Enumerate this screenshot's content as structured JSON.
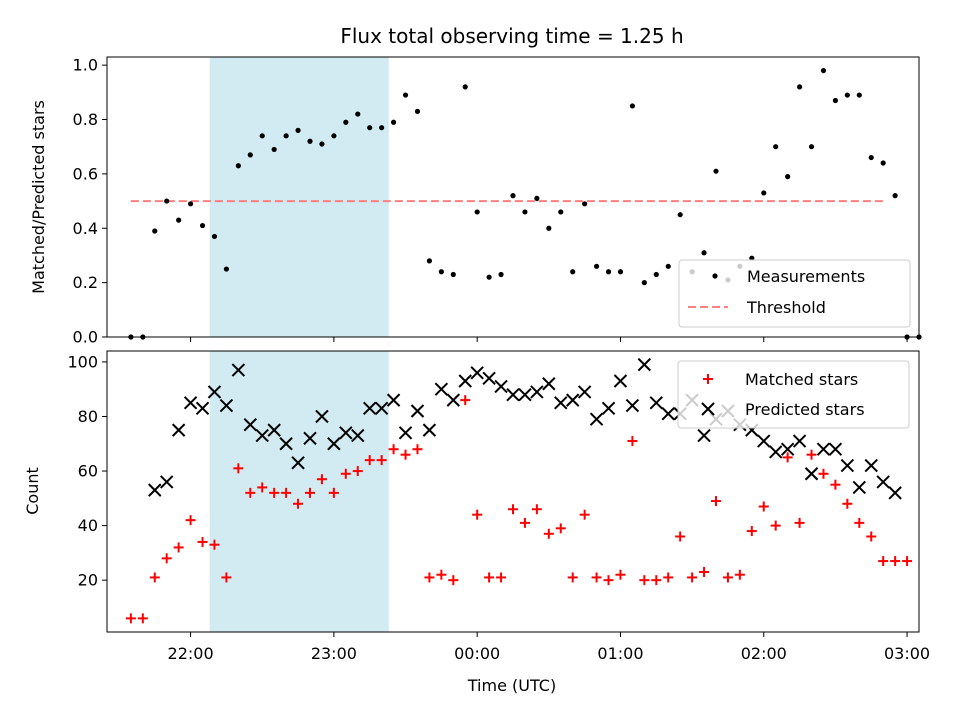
{
  "chart_data": [
    {
      "type": "scatter",
      "title": "Flux total observing time = 1.25 h",
      "ylabel": "Matched/Predicted stars",
      "xlabel": "",
      "ylim": [
        0,
        1.03
      ],
      "xlim": [
        "21:25",
        "03:05"
      ],
      "yticks": [
        "0.0",
        "0.2",
        "0.4",
        "0.6",
        "0.8",
        "1.0"
      ],
      "shaded_region": [
        "22:08",
        "23:23"
      ],
      "shade_color": "#add8e6",
      "legend_position": "lower-right",
      "legend": {
        "measurements": "Measurements",
        "threshold": "Threshold"
      },
      "threshold": {
        "value": 0.5,
        "x_range": [
          "21:35",
          "02:50"
        ],
        "color": "#ff7f7f"
      },
      "measurements": {
        "name": "Measurements",
        "color": "#000000",
        "points": [
          [
            "21:35",
            0.0
          ],
          [
            "21:40",
            0.0
          ],
          [
            "21:45",
            0.39
          ],
          [
            "21:50",
            0.5
          ],
          [
            "21:55",
            0.43
          ],
          [
            "22:00",
            0.49
          ],
          [
            "22:05",
            0.41
          ],
          [
            "22:10",
            0.37
          ],
          [
            "22:15",
            0.25
          ],
          [
            "22:20",
            0.63
          ],
          [
            "22:25",
            0.67
          ],
          [
            "22:30",
            0.74
          ],
          [
            "22:35",
            0.69
          ],
          [
            "22:40",
            0.74
          ],
          [
            "22:45",
            0.76
          ],
          [
            "22:50",
            0.72
          ],
          [
            "22:55",
            0.71
          ],
          [
            "23:00",
            0.74
          ],
          [
            "23:05",
            0.79
          ],
          [
            "23:10",
            0.82
          ],
          [
            "23:15",
            0.77
          ],
          [
            "23:20",
            0.77
          ],
          [
            "23:25",
            0.79
          ],
          [
            "23:30",
            0.89
          ],
          [
            "23:35",
            0.83
          ],
          [
            "23:40",
            0.28
          ],
          [
            "23:45",
            0.24
          ],
          [
            "23:50",
            0.23
          ],
          [
            "23:55",
            0.92
          ],
          [
            "00:00",
            0.46
          ],
          [
            "00:05",
            0.22
          ],
          [
            "00:10",
            0.23
          ],
          [
            "00:15",
            0.52
          ],
          [
            "00:20",
            0.46
          ],
          [
            "00:25",
            0.51
          ],
          [
            "00:30",
            0.4
          ],
          [
            "00:35",
            0.46
          ],
          [
            "00:40",
            0.24
          ],
          [
            "00:45",
            0.49
          ],
          [
            "00:50",
            0.26
          ],
          [
            "00:55",
            0.24
          ],
          [
            "01:00",
            0.24
          ],
          [
            "01:05",
            0.85
          ],
          [
            "01:10",
            0.2
          ],
          [
            "01:15",
            0.23
          ],
          [
            "01:20",
            0.26
          ],
          [
            "01:25",
            0.45
          ],
          [
            "01:30",
            0.24
          ],
          [
            "01:35",
            0.31
          ],
          [
            "01:40",
            0.61
          ],
          [
            "01:45",
            0.21
          ],
          [
            "01:50",
            0.26
          ],
          [
            "01:55",
            0.29
          ],
          [
            "02:00",
            0.53
          ],
          [
            "02:05",
            0.7
          ],
          [
            "02:10",
            0.59
          ],
          [
            "02:15",
            0.92
          ],
          [
            "02:20",
            0.7
          ],
          [
            "02:25",
            0.98
          ],
          [
            "02:30",
            0.87
          ],
          [
            "02:35",
            0.89
          ],
          [
            "02:40",
            0.89
          ],
          [
            "02:45",
            0.66
          ],
          [
            "02:50",
            0.64
          ],
          [
            "02:55",
            0.52
          ],
          [
            "03:00",
            0.0
          ],
          [
            "03:05",
            0.0
          ]
        ]
      }
    },
    {
      "type": "scatter",
      "title": "",
      "xlabel": "Time (UTC)",
      "ylabel": "Count",
      "ylim": [
        1,
        104
      ],
      "xlim": [
        "21:25",
        "03:05"
      ],
      "yticks": [
        "20",
        "40",
        "60",
        "80",
        "100"
      ],
      "xticks": [
        "22:00",
        "23:00",
        "00:00",
        "01:00",
        "02:00",
        "03:00"
      ],
      "shaded_region": [
        "22:08",
        "23:23"
      ],
      "shade_color": "#add8e6",
      "legend_position": "top-right",
      "series": [
        {
          "name": "Matched stars",
          "marker": "plus",
          "color": "#ff0000",
          "points": [
            [
              "21:35",
              6
            ],
            [
              "21:40",
              6
            ],
            [
              "21:45",
              21
            ],
            [
              "21:50",
              28
            ],
            [
              "21:55",
              32
            ],
            [
              "22:00",
              42
            ],
            [
              "22:05",
              34
            ],
            [
              "22:10",
              33
            ],
            [
              "22:15",
              21
            ],
            [
              "22:20",
              61
            ],
            [
              "22:25",
              52
            ],
            [
              "22:30",
              54
            ],
            [
              "22:35",
              52
            ],
            [
              "22:40",
              52
            ],
            [
              "22:45",
              48
            ],
            [
              "22:50",
              52
            ],
            [
              "22:55",
              57
            ],
            [
              "23:00",
              52
            ],
            [
              "23:05",
              59
            ],
            [
              "23:10",
              60
            ],
            [
              "23:15",
              64
            ],
            [
              "23:20",
              64
            ],
            [
              "23:25",
              68
            ],
            [
              "23:30",
              66
            ],
            [
              "23:35",
              68
            ],
            [
              "23:40",
              21
            ],
            [
              "23:45",
              22
            ],
            [
              "23:50",
              20
            ],
            [
              "23:55",
              86
            ],
            [
              "00:00",
              44
            ],
            [
              "00:05",
              21
            ],
            [
              "00:10",
              21
            ],
            [
              "00:15",
              46
            ],
            [
              "00:20",
              41
            ],
            [
              "00:25",
              46
            ],
            [
              "00:30",
              37
            ],
            [
              "00:35",
              39
            ],
            [
              "00:40",
              21
            ],
            [
              "00:45",
              44
            ],
            [
              "00:50",
              21
            ],
            [
              "00:55",
              20
            ],
            [
              "01:00",
              22
            ],
            [
              "01:05",
              71
            ],
            [
              "01:10",
              20
            ],
            [
              "01:15",
              20
            ],
            [
              "01:20",
              21
            ],
            [
              "01:25",
              36
            ],
            [
              "01:30",
              21
            ],
            [
              "01:35",
              23
            ],
            [
              "01:40",
              49
            ],
            [
              "01:45",
              21
            ],
            [
              "01:50",
              22
            ],
            [
              "01:55",
              38
            ],
            [
              "02:00",
              47
            ],
            [
              "02:05",
              40
            ],
            [
              "02:10",
              65
            ],
            [
              "02:15",
              41
            ],
            [
              "02:20",
              66
            ],
            [
              "02:25",
              59
            ],
            [
              "02:30",
              55
            ],
            [
              "02:35",
              48
            ],
            [
              "02:40",
              41
            ],
            [
              "02:45",
              36
            ],
            [
              "02:50",
              27
            ],
            [
              "02:55",
              27
            ],
            [
              "03:00",
              27
            ]
          ]
        },
        {
          "name": "Predicted stars",
          "marker": "x",
          "color": "#000000",
          "points": [
            [
              "21:45",
              53
            ],
            [
              "21:50",
              56
            ],
            [
              "21:55",
              75
            ],
            [
              "22:00",
              85
            ],
            [
              "22:05",
              83
            ],
            [
              "22:10",
              89
            ],
            [
              "22:15",
              84
            ],
            [
              "22:20",
              97
            ],
            [
              "22:25",
              77
            ],
            [
              "22:30",
              73
            ],
            [
              "22:35",
              75
            ],
            [
              "22:40",
              70
            ],
            [
              "22:45",
              63
            ],
            [
              "22:50",
              72
            ],
            [
              "22:55",
              80
            ],
            [
              "23:00",
              70
            ],
            [
              "23:05",
              74
            ],
            [
              "23:10",
              73
            ],
            [
              "23:15",
              83
            ],
            [
              "23:20",
              83
            ],
            [
              "23:25",
              86
            ],
            [
              "23:30",
              74
            ],
            [
              "23:35",
              82
            ],
            [
              "23:40",
              75
            ],
            [
              "23:45",
              90
            ],
            [
              "23:50",
              86
            ],
            [
              "23:55",
              93
            ],
            [
              "00:00",
              96
            ],
            [
              "00:05",
              94
            ],
            [
              "00:10",
              91
            ],
            [
              "00:15",
              88
            ],
            [
              "00:20",
              88
            ],
            [
              "00:25",
              89
            ],
            [
              "00:30",
              92
            ],
            [
              "00:35",
              85
            ],
            [
              "00:40",
              86
            ],
            [
              "00:45",
              89
            ],
            [
              "00:50",
              79
            ],
            [
              "00:55",
              83
            ],
            [
              "01:00",
              93
            ],
            [
              "01:05",
              84
            ],
            [
              "01:10",
              99
            ],
            [
              "01:15",
              85
            ],
            [
              "01:20",
              81
            ],
            [
              "01:25",
              81
            ],
            [
              "01:30",
              86
            ],
            [
              "01:35",
              73
            ],
            [
              "01:40",
              79
            ],
            [
              "01:45",
              82
            ],
            [
              "01:50",
              77
            ],
            [
              "01:55",
              75
            ],
            [
              "02:00",
              71
            ],
            [
              "02:05",
              67
            ],
            [
              "02:10",
              68
            ],
            [
              "02:15",
              71
            ],
            [
              "02:20",
              59
            ],
            [
              "02:25",
              68
            ],
            [
              "02:30",
              68
            ],
            [
              "02:35",
              62
            ],
            [
              "02:40",
              54
            ],
            [
              "02:45",
              62
            ],
            [
              "02:50",
              56
            ],
            [
              "02:55",
              52
            ]
          ]
        }
      ]
    }
  ]
}
